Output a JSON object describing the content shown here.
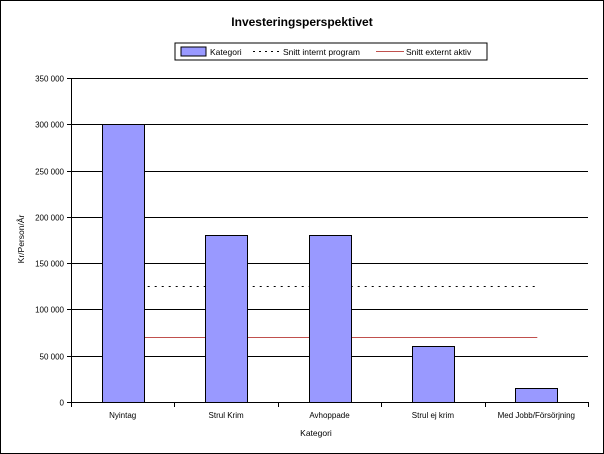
{
  "chart_data": {
    "type": "bar",
    "title": "Investeringsperspektivet",
    "xlabel": "Kategori",
    "ylabel": "Kr/Person/År",
    "categories": [
      "Nyintag",
      "Strul Krim",
      "Avhoppade",
      "Strul ej krim",
      "Med Jobb/Försörjning"
    ],
    "series": [
      {
        "name": "Kategori",
        "values": [
          300000,
          180000,
          180000,
          60000,
          15000
        ],
        "color": "#9999ff"
      }
    ],
    "reference_lines": [
      {
        "name": "Snitt internt program",
        "value": 125000,
        "style": "dotted",
        "color": "#000000"
      },
      {
        "name": "Snitt externt aktiv",
        "value": 70000,
        "style": "solid",
        "color": "#c0504d"
      }
    ],
    "ylim": [
      0,
      350000
    ],
    "yticks": [
      0,
      50000,
      100000,
      150000,
      200000,
      250000,
      300000,
      350000
    ],
    "ytick_labels": [
      "0",
      "50 000",
      "100 000",
      "150 000",
      "200 000",
      "250 000",
      "300 000",
      "350 000"
    ],
    "grid": true,
    "legend_position": "top"
  }
}
